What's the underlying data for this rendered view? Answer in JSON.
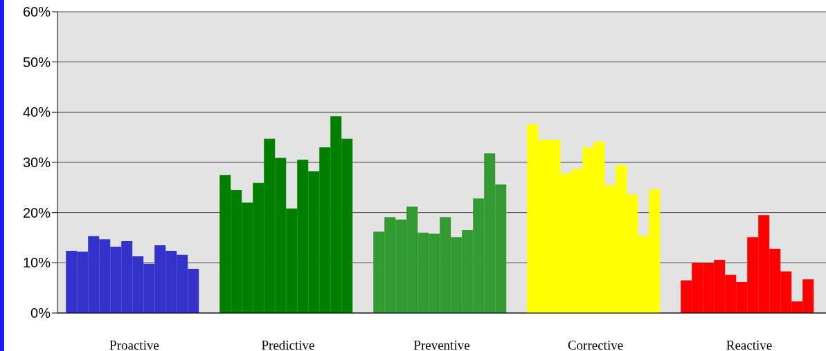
{
  "chart_data": {
    "type": "bar",
    "categories": [
      "Proactive",
      "Predictive",
      "Preventive",
      "Corrective",
      "Reactive"
    ],
    "series": [
      {
        "colors": [
          "#3333cc",
          "#007f00",
          "#339933",
          "#ffff00",
          "#ff0000"
        ],
        "values": [
          12.4,
          27.5,
          16.2,
          37.6,
          6.5
        ]
      },
      {
        "colors": [
          "#3333cc",
          "#007f00",
          "#339933",
          "#ffff00",
          "#ff0000"
        ],
        "values": [
          12.2,
          24.5,
          19.1,
          34.5,
          10.0
        ]
      },
      {
        "colors": [
          "#3333cc",
          "#007f00",
          "#339933",
          "#ffff00",
          "#ff0000"
        ],
        "values": [
          15.3,
          22.0,
          18.6,
          34.5,
          9.9
        ]
      },
      {
        "colors": [
          "#3333cc",
          "#007f00",
          "#339933",
          "#ffff00",
          "#ff0000"
        ],
        "values": [
          14.7,
          25.9,
          21.2,
          27.8,
          10.6
        ]
      },
      {
        "colors": [
          "#3333cc",
          "#007f00",
          "#339933",
          "#ffff00",
          "#ff0000"
        ],
        "values": [
          13.2,
          34.7,
          16.0,
          28.7,
          7.6
        ]
      },
      {
        "colors": [
          "#3333cc",
          "#007f00",
          "#339933",
          "#ffff00",
          "#ff0000"
        ],
        "values": [
          14.3,
          30.9,
          15.8,
          33.0,
          6.2
        ]
      },
      {
        "colors": [
          "#3333cc",
          "#007f00",
          "#339933",
          "#ffff00",
          "#ff0000"
        ],
        "values": [
          11.3,
          20.8,
          19.1,
          34.1,
          15.1
        ]
      },
      {
        "colors": [
          "#3333cc",
          "#007f00",
          "#339933",
          "#ffff00",
          "#ff0000"
        ],
        "values": [
          9.8,
          30.5,
          15.1,
          25.5,
          19.5
        ]
      },
      {
        "colors": [
          "#3333cc",
          "#007f00",
          "#339933",
          "#ffff00",
          "#ff0000"
        ],
        "values": [
          13.5,
          28.2,
          16.5,
          29.4,
          12.8
        ]
      },
      {
        "colors": [
          "#3333cc",
          "#007f00",
          "#339933",
          "#ffff00",
          "#ff0000"
        ],
        "values": [
          12.4,
          33.0,
          22.8,
          23.6,
          8.3
        ]
      },
      {
        "colors": [
          "#3333cc",
          "#007f00",
          "#339933",
          "#ffff00",
          "#ff0000"
        ],
        "values": [
          11.6,
          39.2,
          31.8,
          15.4,
          2.3
        ]
      },
      {
        "colors": [
          "#3333cc",
          "#007f00",
          "#339933",
          "#ffff00",
          "#ff0000"
        ],
        "values": [
          8.8,
          34.7,
          25.6,
          24.6,
          6.7
        ]
      }
    ],
    "ylim": [
      0,
      60
    ],
    "yticks": [
      {
        "value": 0,
        "label": "0%"
      },
      {
        "value": 10,
        "label": "10%"
      },
      {
        "value": 20,
        "label": "20%"
      },
      {
        "value": 30,
        "label": "30%"
      },
      {
        "value": 40,
        "label": "40%"
      },
      {
        "value": 50,
        "label": "50%"
      },
      {
        "value": 60,
        "label": "60%"
      }
    ],
    "grid": "y",
    "legend": false
  }
}
